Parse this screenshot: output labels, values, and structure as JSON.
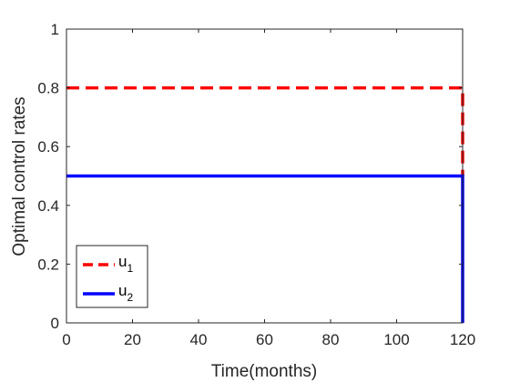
{
  "chart_data": {
    "type": "line",
    "xlabel": "Time(months)",
    "ylabel": "Optimal control rates",
    "xlim": [
      0,
      120
    ],
    "ylim": [
      0,
      1
    ],
    "xticks": [
      "0",
      "20",
      "40",
      "60",
      "80",
      "100",
      "120"
    ],
    "yticks": [
      "0",
      "0.2",
      "0.4",
      "0.6",
      "0.8",
      "1"
    ],
    "grid": false,
    "legend_position": "bottom-left",
    "series": [
      {
        "name": "u",
        "name_sub": "1",
        "color": "#ff0000",
        "style": "dashed",
        "x": [
          0,
          119,
          120,
          120
        ],
        "y": [
          0.8,
          0.8,
          0.8,
          0.5
        ]
      },
      {
        "name": "u",
        "name_sub": "2",
        "color": "#0000ff",
        "style": "solid",
        "x": [
          0,
          119,
          120,
          120
        ],
        "y": [
          0.5,
          0.5,
          0.5,
          0
        ]
      }
    ]
  }
}
